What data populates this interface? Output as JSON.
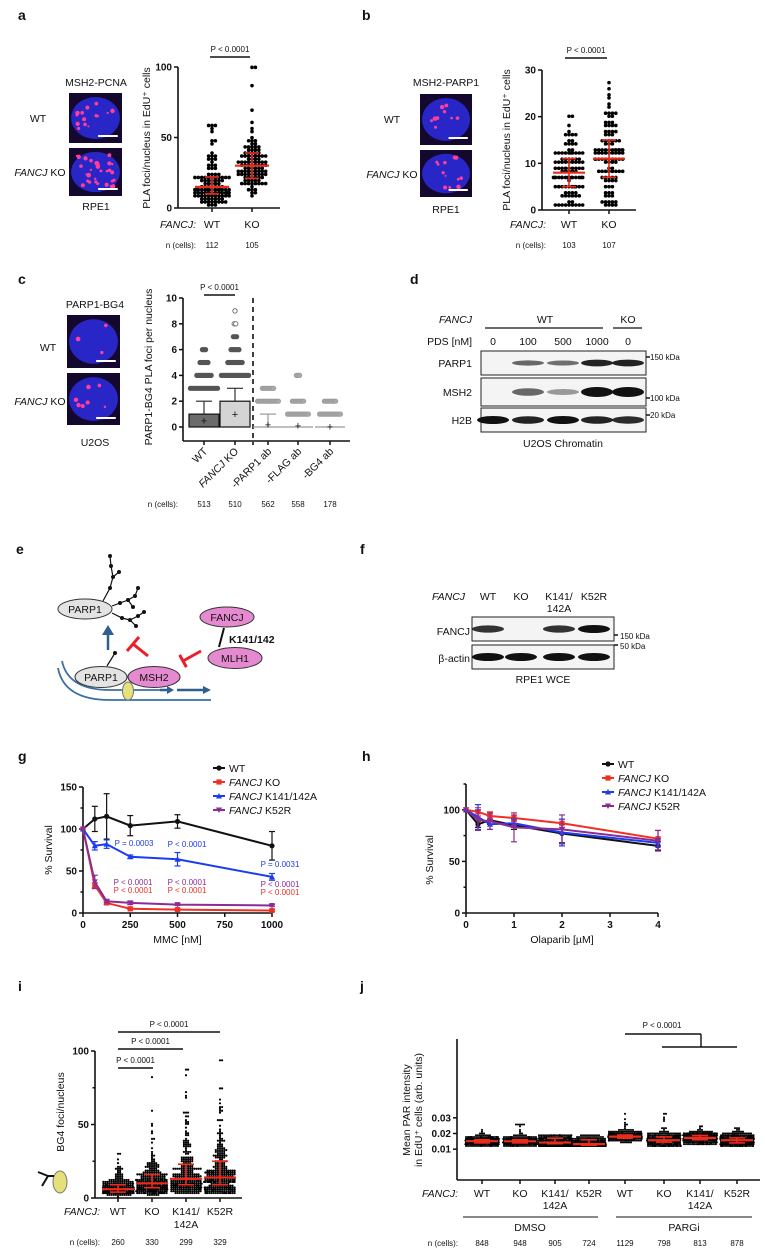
{
  "panel_labels": {
    "a": "a",
    "b": "b",
    "c": "c",
    "d": "d",
    "e": "e",
    "f": "f",
    "g": "g",
    "h": "h",
    "i": "i",
    "j": "j"
  },
  "colors": {
    "wt": "#111111",
    "ko": "#ee3124",
    "k141": "#1c3cf0",
    "k52r": "#8b2c96",
    "median_bar": "#ee2a1b",
    "nucleus": "#2a2ad8",
    "pla_foci": "#ff3d9a",
    "inhibit": "#ee1c25",
    "pathway_arrow": "#2f5f8f",
    "fancj_protein": "#e58ad0",
    "parp1_protein": "#e3e3e3"
  },
  "a": {
    "probe": "MSH2-PCNA",
    "wt": "WT",
    "ko_gene": "FANCJ",
    "ko_suffix": " KO",
    "cell_line": "RPE1"
  },
  "b": {
    "probe": "MSH2-PARP1",
    "wt": "WT",
    "ko_gene": "FANCJ",
    "ko_suffix": " KO",
    "cell_line": "RPE1"
  },
  "c": {
    "probe": "PARP1-BG4",
    "wt": "WT",
    "ko_gene": "FANCJ",
    "ko_suffix": " KO",
    "cell_line": "U2OS"
  },
  "d": {
    "gene": "FANCJ",
    "wt": "WT",
    "ko": "KO",
    "treatment": "PDS [nM]",
    "doses": [
      "0",
      "100",
      "500",
      "1000",
      "0"
    ],
    "rows": [
      "PARP1",
      "MSH2",
      "H2B"
    ],
    "markers": [
      "150 kDa",
      "100 kDa",
      "20 kDa"
    ],
    "caption": "U2OS Chromatin",
    "band_intensity": {
      "PARP1": [
        0,
        0.5,
        0.45,
        0.9,
        0.9
      ],
      "MSH2": [
        0,
        0.5,
        0.2,
        1,
        1
      ],
      "H2B": [
        1,
        0.9,
        1,
        0.9,
        0.85
      ]
    }
  },
  "e": {
    "parp1_top": "PARP1",
    "parp1_bottom": "PARP1",
    "msh2": "MSH2",
    "fancj": "FANCJ",
    "mlh1": "MLH1",
    "site": "K141/142"
  },
  "f": {
    "gene": "FANCJ",
    "lanes": [
      "WT",
      "KO",
      "K141/",
      "K52R"
    ],
    "lane3_line2": "142A",
    "rows": [
      "FANCJ",
      "β-actin"
    ],
    "markers": [
      "150 kDa",
      "50 kDa"
    ],
    "caption": "RPE1 WCE",
    "band_intensity": {
      "FANCJ": [
        0.8,
        0,
        0.8,
        1
      ],
      "beta_actin": [
        1,
        1,
        1,
        1
      ]
    }
  },
  "chart_data": [
    {
      "panel": "a",
      "type": "scatter",
      "ylabel": "PLA foci/nucleus in EdU⁺ cells",
      "ylim": [
        0,
        100
      ],
      "yticks": [
        "0",
        "50",
        "100"
      ],
      "group_prefix": "FANCJ:",
      "categories": [
        "WT",
        "KO"
      ],
      "n_prefix": "n (cells):",
      "n": [
        "112",
        "105"
      ],
      "median": [
        15,
        30
      ],
      "iqr": [
        [
          10,
          22
        ],
        [
          21,
          39
        ]
      ],
      "range": [
        [
          2,
          59
        ],
        [
          5,
          100
        ]
      ],
      "significance": [
        {
          "groups": [
            "WT",
            "KO"
          ],
          "text": "P < 0.0001"
        }
      ]
    },
    {
      "panel": "b",
      "type": "scatter",
      "ylabel": "PLA foci/nucleus in EdU⁺ cells",
      "ylim": [
        0,
        30
      ],
      "yticks": [
        "0",
        "10",
        "20",
        "30"
      ],
      "group_prefix": "FANCJ:",
      "categories": [
        "WT",
        "KO"
      ],
      "n_prefix": "n (cells):",
      "n": [
        "103",
        "107"
      ],
      "median": [
        8,
        11
      ],
      "iqr": [
        [
          5,
          11
        ],
        [
          7,
          15
        ]
      ],
      "range": [
        [
          1,
          20
        ],
        [
          1,
          27
        ]
      ],
      "significance": [
        {
          "groups": [
            "WT",
            "KO"
          ],
          "text": "P < 0.0001"
        }
      ]
    },
    {
      "panel": "c",
      "type": "box",
      "ylabel": "PARP1-BG4 PLA foci per nucleus",
      "ylim": [
        0,
        10
      ],
      "yticks": [
        "0",
        "2",
        "4",
        "6",
        "8",
        "10"
      ],
      "categories": [
        "WT",
        "FANCJ KO",
        "-PARP1 ab",
        "-FLAG ab",
        "-BG4 ab"
      ],
      "n_prefix": "n (cells):",
      "n": [
        "513",
        "510",
        "562",
        "558",
        "178"
      ],
      "box": [
        [
          0,
          1
        ],
        [
          0,
          2
        ],
        [
          0,
          0
        ],
        [
          0,
          0
        ],
        [
          0,
          0
        ]
      ],
      "whisker": [
        [
          0,
          2
        ],
        [
          0,
          3
        ],
        [
          0,
          1
        ],
        [
          0,
          0
        ],
        [
          0,
          0
        ]
      ],
      "mean": [
        0.5,
        1,
        0.2,
        0.1,
        0.05
      ],
      "outliers": [
        [
          3,
          4,
          5,
          6
        ],
        [
          4,
          5,
          6,
          7,
          8,
          9
        ],
        [
          2,
          3
        ],
        [
          1,
          2,
          4
        ],
        [
          1,
          2
        ]
      ],
      "significance": [
        {
          "groups": [
            "WT",
            "FANCJ KO"
          ],
          "text": "P < 0.0001"
        }
      ]
    },
    {
      "panel": "g",
      "type": "line",
      "xlabel": "MMC [nM]",
      "ylabel": "% Survival",
      "xlim": [
        0,
        1000
      ],
      "ylim": [
        0,
        150
      ],
      "xticks": [
        "0",
        "250",
        "500",
        "750",
        "1000"
      ],
      "yticks": [
        "0",
        "50",
        "100",
        "150"
      ],
      "legend": "top-right",
      "x": [
        0,
        62.5,
        125,
        250,
        500,
        1000
      ],
      "series": [
        {
          "name": "WT",
          "color": "#111111",
          "marker": "circle",
          "values": [
            100,
            112,
            115,
            104,
            109,
            80
          ],
          "error": [
            0,
            15,
            27,
            12,
            8,
            17
          ]
        },
        {
          "name": "FANCJ KO",
          "color": "#ee3124",
          "marker": "square",
          "values": [
            100,
            33,
            12,
            5,
            4,
            3
          ],
          "error": [
            0,
            3,
            2,
            1,
            1,
            1
          ]
        },
        {
          "name": "FANCJ K141/142A",
          "color": "#1c3cf0",
          "marker": "triangle-up",
          "values": [
            100,
            80,
            82,
            67,
            64,
            43
          ],
          "error": [
            0,
            5,
            5,
            2,
            8,
            4
          ]
        },
        {
          "name": "FANCJ K52R",
          "color": "#8b2c96",
          "marker": "triangle-down",
          "values": [
            100,
            37,
            14,
            12,
            10,
            9
          ],
          "error": [
            0,
            8,
            2,
            2,
            1,
            1
          ]
        }
      ],
      "annotations": [
        {
          "x": 125,
          "series": "FANCJ K141/142A",
          "text": "P = 0.0003"
        },
        {
          "x": 500,
          "series": "FANCJ K141/142A",
          "text": "P < 0.0001"
        },
        {
          "x": 1000,
          "series": "FANCJ K141/142A",
          "text": "P = 0.0031"
        },
        {
          "x": 125,
          "series": "FANCJ K52R",
          "text": "P < 0.0001"
        },
        {
          "x": 125,
          "series": "FANCJ KO",
          "text": "P < 0.0001"
        },
        {
          "x": 500,
          "series": "FANCJ K52R",
          "text": "P < 0.0001"
        },
        {
          "x": 500,
          "series": "FANCJ KO",
          "text": "P < 0.0001"
        },
        {
          "x": 1000,
          "series": "FANCJ K52R",
          "text": "P < 0.0001"
        },
        {
          "x": 1000,
          "series": "FANCJ KO",
          "text": "P < 0.0001"
        }
      ]
    },
    {
      "panel": "h",
      "type": "line",
      "xlabel": "Olaparib [µM]",
      "ylabel": "% Survival",
      "xlim": [
        0,
        4
      ],
      "ylim": [
        0,
        125
      ],
      "xticks": [
        "0",
        "1",
        "2",
        "3",
        "4"
      ],
      "yticks": [
        "0",
        "50",
        "100"
      ],
      "legend": "top-right",
      "x": [
        0,
        0.25,
        0.5,
        1,
        2,
        4
      ],
      "series": [
        {
          "name": "WT",
          "color": "#111111",
          "marker": "circle",
          "values": [
            100,
            86,
            90,
            85,
            77,
            65
          ],
          "error": [
            0,
            3,
            4,
            4,
            9,
            4
          ]
        },
        {
          "name": "FANCJ KO",
          "color": "#ee3124",
          "marker": "square",
          "values": [
            100,
            98,
            94,
            92,
            87,
            72
          ],
          "error": [
            0,
            4,
            4,
            3,
            4,
            8
          ]
        },
        {
          "name": "FANCJ K141/142A",
          "color": "#1c3cf0",
          "marker": "triangle-up",
          "values": [
            100,
            93,
            86,
            87,
            78,
            68
          ],
          "error": [
            0,
            12,
            5,
            4,
            13,
            4
          ]
        },
        {
          "name": "FANCJ K52R",
          "color": "#8b2c96",
          "marker": "triangle-down",
          "values": [
            100,
            90,
            89,
            83,
            81,
            70
          ],
          "error": [
            0,
            10,
            8,
            14,
            14,
            10
          ]
        }
      ]
    },
    {
      "panel": "i",
      "type": "scatter",
      "ylabel": "BG4 foci/nucleus",
      "ylim": [
        0,
        100
      ],
      "yticks": [
        "0",
        "50",
        "100"
      ],
      "group_prefix": "FANCJ:",
      "categories": [
        "WT",
        "KO",
        "K141/",
        "K52R"
      ],
      "category3_line2": "142A",
      "n_prefix": "n (cells):",
      "n": [
        "260",
        "330",
        "299",
        "329"
      ],
      "median": [
        6,
        10,
        13,
        14
      ],
      "iqr": [
        [
          4,
          9
        ],
        [
          7,
          16
        ],
        [
          9,
          23
        ],
        [
          9,
          25
        ]
      ],
      "range": [
        [
          1,
          30
        ],
        [
          2,
          82
        ],
        [
          3,
          87
        ],
        [
          3,
          94
        ]
      ],
      "significance": [
        {
          "groups": [
            "WT",
            "KO"
          ],
          "text": "P < 0.0001"
        },
        {
          "groups": [
            "WT",
            "K141/142A"
          ],
          "text": "P < 0.0001"
        },
        {
          "groups": [
            "WT",
            "K52R"
          ],
          "text": "P < 0.0001"
        }
      ]
    },
    {
      "panel": "j",
      "type": "scatter",
      "ylabel": [
        "Mean PAR intensity",
        "in EdU⁺ cells (arb. units)"
      ],
      "ylim": [
        0.005,
        0.035
      ],
      "yticks": [
        "0.01",
        "0.02",
        "0.03"
      ],
      "group_prefix": "FANCJ:",
      "categories": [
        "WT",
        "KO",
        "K141/",
        "K52R",
        "WT",
        "KO",
        "K141/",
        "K52R"
      ],
      "category_line2": "142A",
      "treatments": [
        "DMSO",
        "PARGi"
      ],
      "n_prefix": "n (cells):",
      "n": [
        "848",
        "948",
        "905",
        "724",
        "1129",
        "798",
        "813",
        "878"
      ],
      "median": [
        0.0151,
        0.015,
        0.0142,
        0.0132,
        0.018,
        0.0157,
        0.0172,
        0.0157
      ],
      "iqr": [
        [
          0.014,
          0.016
        ],
        [
          0.014,
          0.016
        ],
        [
          0.0135,
          0.017
        ],
        [
          0.0125,
          0.016
        ],
        [
          0.017,
          0.019
        ],
        [
          0.0145,
          0.0178
        ],
        [
          0.016,
          0.0187
        ],
        [
          0.014,
          0.0172
        ]
      ],
      "range": [
        [
          0.0115,
          0.0225
        ],
        [
          0.0125,
          0.026
        ],
        [
          0.012,
          0.0185
        ],
        [
          0.0115,
          0.0185
        ],
        [
          0.013,
          0.0325
        ],
        [
          0.012,
          0.033
        ],
        [
          0.013,
          0.0245
        ],
        [
          0.0115,
          0.023
        ]
      ],
      "significance": [
        {
          "groups": [
            "PARGi WT",
            "PARGi KO, K141/142A, K52R"
          ],
          "text": "P < 0.0001"
        }
      ]
    }
  ]
}
